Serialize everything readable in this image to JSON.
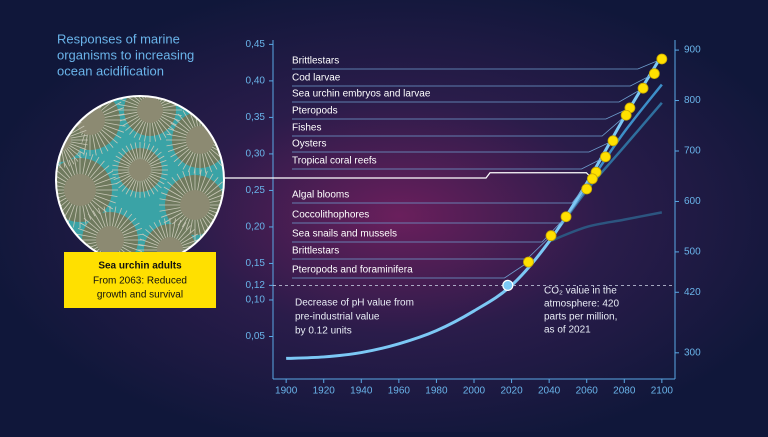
{
  "chart_data": {
    "type": "line",
    "title": [
      "Responses of marine",
      "organisms to increasing",
      "ocean acidification"
    ],
    "x": [
      1900,
      1920,
      1940,
      1960,
      1980,
      2000,
      2020,
      2040,
      2060,
      2080,
      2100
    ],
    "xlim": [
      1893,
      2107
    ],
    "xticks": [
      1900,
      1920,
      1940,
      1960,
      1980,
      2000,
      2020,
      2040,
      2060,
      2080,
      2100
    ],
    "ylim": [
      0,
      0.456
    ],
    "yticks": [
      {
        "value": 0.05,
        "label": "0,05"
      },
      {
        "value": 0.1,
        "label": "0,10"
      },
      {
        "value": 0.12,
        "label": "0,12"
      },
      {
        "value": 0.15,
        "label": "0,15"
      },
      {
        "value": 0.2,
        "label": "0,20"
      },
      {
        "value": 0.25,
        "label": "0,25"
      },
      {
        "value": 0.3,
        "label": "0,30"
      },
      {
        "value": 0.35,
        "label": "0,35"
      },
      {
        "value": 0.4,
        "label": "0,40"
      },
      {
        "value": 0.45,
        "label": "0,45"
      }
    ],
    "y2lim": [
      260,
      920
    ],
    "y2ticks": [
      300,
      420,
      500,
      600,
      700,
      800,
      900
    ],
    "series": [
      {
        "color": "#7cc8f5",
        "values": [
          0.02,
          0.022,
          0.028,
          0.04,
          0.058,
          0.085,
          0.12,
          0.18,
          0.26,
          0.35,
          0.435
        ]
      },
      {
        "color": "#3d8fc9",
        "values": [
          null,
          null,
          null,
          null,
          null,
          null,
          null,
          0.18,
          0.255,
          0.33,
          0.395
        ]
      },
      {
        "color": "#2f6f9e",
        "values": [
          null,
          null,
          null,
          null,
          null,
          null,
          null,
          0.18,
          0.25,
          0.31,
          0.37
        ]
      },
      {
        "color": "#2c5580",
        "values": [
          null,
          null,
          null,
          null,
          null,
          null,
          null,
          0.18,
          0.2,
          0.21,
          0.22
        ]
      }
    ],
    "organisms": [
      {
        "label": "Brittlestars",
        "year": 2100,
        "value": 0.43
      },
      {
        "label": "Cod larvae",
        "year": 2096,
        "value": 0.41
      },
      {
        "label": "Sea urchin embryos and larvae",
        "year": 2090,
        "value": 0.39
      },
      {
        "label": "Pteropods",
        "year": 2083,
        "value": 0.363
      },
      {
        "label": "Fishes",
        "year": 2081,
        "value": 0.353
      },
      {
        "label": "Oysters",
        "year": 2074,
        "value": 0.318
      },
      {
        "label": "Tropical coral reefs",
        "year": 2070,
        "value": 0.296
      },
      {
        "label": "Algal blooms",
        "year": 2065,
        "value": 0.275
      },
      {
        "label": "Coccolithophores",
        "year": 2060,
        "value": 0.252
      },
      {
        "label": "Sea snails and mussels",
        "year": 2049,
        "value": 0.214
      },
      {
        "label": "Brittlestars",
        "year": 2041,
        "value": 0.188
      },
      {
        "label": "Pteropods and foraminifera",
        "year": 2029,
        "value": 0.152
      }
    ],
    "highlight": {
      "title": "Sea urchin adults",
      "text": [
        "From 2063: Reduced",
        "growth and survival"
      ],
      "year": 2063,
      "value": 0.266
    },
    "current": {
      "year": 2018,
      "value": 0.12
    },
    "annotation_left": [
      "Decrease of pH value from",
      "pre-industrial value",
      "by 0.12 units"
    ],
    "annotation_right": [
      "CO₂ value in the",
      "atmosphere: 420",
      "parts per million,",
      "as of 2021"
    ]
  }
}
